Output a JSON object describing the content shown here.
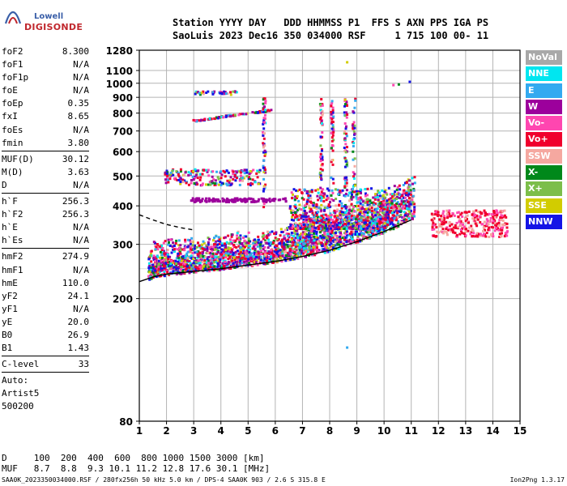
{
  "logo": {
    "company": "Lowell",
    "product": "DIGISONDE"
  },
  "header": {
    "line1": "Station YYYY DAY   DDD HHMMSS P1  FFS S AXN PPS IGA PS",
    "line2": "SaoLuis 2023 Dec16 350 034000 RSF     1 715 100 00- 11"
  },
  "params": [
    {
      "label": "foF2",
      "value": "8.300"
    },
    {
      "label": "foF1",
      "value": "N/A"
    },
    {
      "label": "foF1p",
      "value": "N/A"
    },
    {
      "label": "foE",
      "value": "N/A"
    },
    {
      "label": "foEp",
      "value": "0.35"
    },
    {
      "label": "fxI",
      "value": "8.65"
    },
    {
      "label": "foEs",
      "value": "N/A"
    },
    {
      "label": "fmin",
      "value": "3.80"
    },
    {
      "sep": true
    },
    {
      "label": "MUF(D)",
      "value": "30.12"
    },
    {
      "label": "M(D)",
      "value": "3.63"
    },
    {
      "label": "D",
      "value": "N/A"
    },
    {
      "sep": true
    },
    {
      "label": "h`F",
      "value": "256.3"
    },
    {
      "label": "h`F2",
      "value": "256.3"
    },
    {
      "label": "h`E",
      "value": "N/A"
    },
    {
      "label": "h`Es",
      "value": "N/A"
    },
    {
      "sep": true
    },
    {
      "label": "hmF2",
      "value": "274.9"
    },
    {
      "label": "hmF1",
      "value": "N/A"
    },
    {
      "label": "hmE",
      "value": "110.0"
    },
    {
      "label": "yF2",
      "value": "24.1"
    },
    {
      "label": "yF1",
      "value": "N/A"
    },
    {
      "label": "yE",
      "value": "20.0"
    },
    {
      "label": "B0",
      "value": "26.9"
    },
    {
      "label": "B1",
      "value": "1.43"
    },
    {
      "sep": true
    },
    {
      "label": "C-level",
      "value": "33"
    },
    {
      "sep": true
    }
  ],
  "autoscale": {
    "line1": "Auto:",
    "line2": "Artist5",
    "line3": "500200"
  },
  "legend": [
    {
      "label": "NoVal",
      "bg": "#a8a8a8",
      "fg": "#ffffff"
    },
    {
      "label": "NNE",
      "bg": "#00e6f0",
      "fg": "#ffffff"
    },
    {
      "label": "E",
      "bg": "#33aaf0",
      "fg": "#ffffff"
    },
    {
      "label": "W",
      "bg": "#9c009c",
      "fg": "#ffffff"
    },
    {
      "label": "Vo-",
      "bg": "#ff46b0",
      "fg": "#ffffff"
    },
    {
      "label": "Vo+",
      "bg": "#f0002d",
      "fg": "#ffffff"
    },
    {
      "label": "SSW",
      "bg": "#f5a8a0",
      "fg": "#ffffff"
    },
    {
      "label": "X-",
      "bg": "#00881a",
      "fg": "#ffffff"
    },
    {
      "label": "X+",
      "bg": "#7cbe4a",
      "fg": "#ffffff"
    },
    {
      "label": "SSE",
      "bg": "#d2cc00",
      "fg": "#ffffff"
    },
    {
      "label": "NNW",
      "bg": "#1414e6",
      "fg": "#ffffff"
    }
  ],
  "footer": {
    "line1": "D     100  200  400  600  800 1000 1500 3000 [km]",
    "line2": "MUF   8.7  8.8  9.3 10.1 11.2 12.8 17.6 30.1 [MHz]",
    "line3": "SAA0K_2023350034000.RSF / 280fx256h 50 kHz 5.0 km / DPS-4 SAA0K 903 / 2.6 S 315.8 E",
    "version": "Ion2Png 1.3.17"
  },
  "chart_data": {
    "type": "scatter",
    "title": "",
    "xlabel": "",
    "ylabel": "",
    "xlim": [
      1,
      15
    ],
    "xticks": [
      1,
      2,
      3,
      4,
      5,
      6,
      7,
      8,
      9,
      10,
      11,
      12,
      13,
      14,
      15
    ],
    "ylim": [
      80,
      1280
    ],
    "yticks": [
      80,
      200,
      300,
      400,
      500,
      600,
      700,
      800,
      900,
      1000,
      1100,
      1280
    ],
    "y_scale": "log",
    "grid": true,
    "series": [
      {
        "kind": "trace",
        "color": "#000000",
        "dash": "none",
        "points": [
          [
            1.0,
            227
          ],
          [
            1.5,
            235
          ],
          [
            2.0,
            240
          ],
          [
            3.0,
            245
          ],
          [
            4.0,
            250
          ],
          [
            5.0,
            257
          ],
          [
            6.0,
            264
          ],
          [
            7.0,
            274
          ],
          [
            8.0,
            287
          ],
          [
            9.0,
            306
          ],
          [
            10.0,
            330
          ],
          [
            11.0,
            360
          ]
        ]
      },
      {
        "kind": "trace",
        "color": "#000000",
        "dash": "5,4",
        "points": [
          [
            1.0,
            374
          ],
          [
            1.5,
            360
          ],
          [
            2.0,
            348
          ],
          [
            2.5,
            340
          ],
          [
            3.0,
            334
          ]
        ]
      }
    ]
  }
}
